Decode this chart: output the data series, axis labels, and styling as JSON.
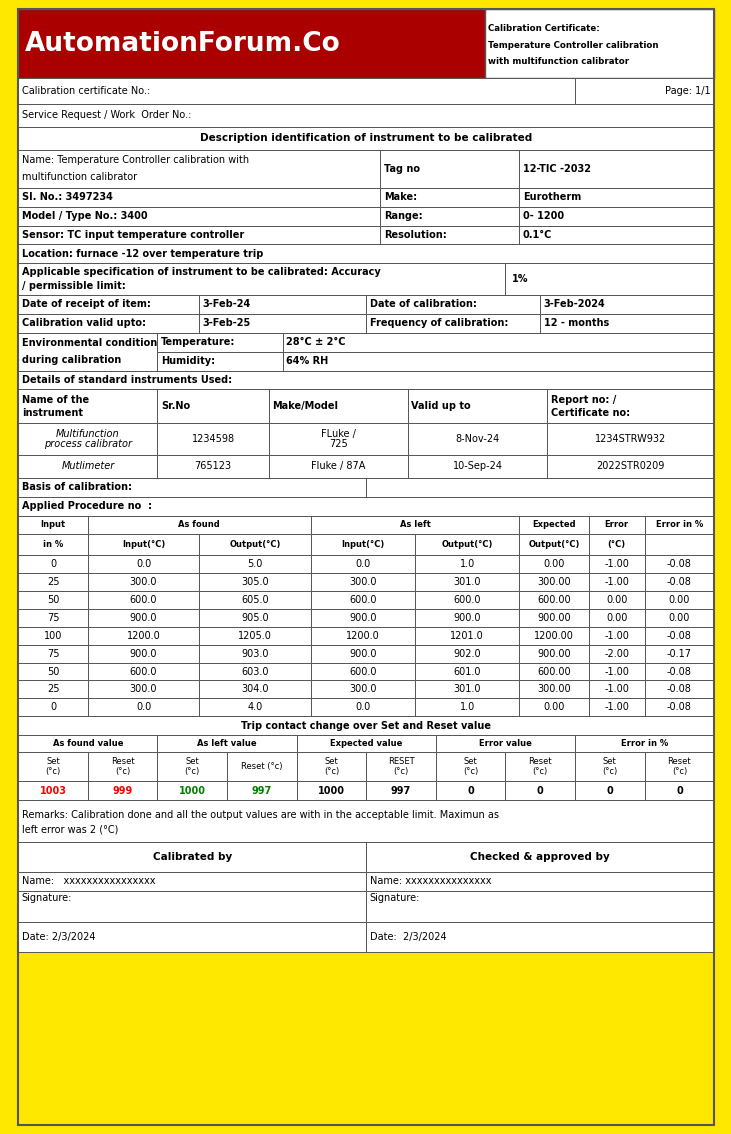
{
  "title_logo": "AutomationForum.Co",
  "title_cert": "Calibration Certificate:\nTemperature Controller calibration\nwith multifunction calibrator",
  "cert_no_label": "Calibration certificate No.:",
  "page_label": "Page: 1/1",
  "service_req_label": "Service Request / Work  Order No.:",
  "desc_title": "Description identification of instrument to be calibrated",
  "tag_label": "Tag no",
  "tag_value": "12-TIC -2032",
  "sl_label": "Sl. No.: 3497234",
  "make_label": "Make:",
  "make_value": "Eurotherm",
  "model_label": "Model / Type No.: 3400",
  "range_label": "Range:",
  "range_value": "0- 1200",
  "sensor_label": "Sensor: TC input temperature controller",
  "resolution_label": "Resolution:",
  "resolution_value": "0.1°C",
  "location_label": "Location: furnace -12 over temperature trip",
  "spec_value": "1%",
  "date_receipt_label": "Date of receipt of item:",
  "date_receipt_value": "3-Feb-24",
  "date_calib_label": "Date of calibration:",
  "date_calib_value": "3-Feb-2024",
  "calib_valid_label": "Calibration valid upto:",
  "calib_valid_value": "3-Feb-25",
  "freq_calib_label": "Frequency of calibration:",
  "freq_calib_value": "12 - months",
  "temp_label": "Temperature:",
  "temp_value": "28°C ± 2°C",
  "humidity_label": "Humidity:",
  "humidity_value": "64% RH",
  "details_std_label": "Details of standard instruments Used:",
  "basis_label": "Basis of calibration:",
  "applied_proc_label": "Applied Procedure no  :",
  "meas_data": [
    [
      0,
      0.0,
      5.0,
      0.0,
      1.0,
      0.0,
      -1.0,
      -0.08
    ],
    [
      25,
      300.0,
      305.0,
      300.0,
      301.0,
      300.0,
      -1.0,
      -0.08
    ],
    [
      50,
      600.0,
      605.0,
      600.0,
      600.0,
      600.0,
      0.0,
      0.0
    ],
    [
      75,
      900.0,
      905.0,
      900.0,
      900.0,
      900.0,
      0.0,
      0.0
    ],
    [
      100,
      1200.0,
      1205.0,
      1200.0,
      1201.0,
      1200.0,
      -1.0,
      -0.08
    ],
    [
      75,
      900.0,
      903.0,
      900.0,
      902.0,
      900.0,
      -2.0,
      -0.17
    ],
    [
      50,
      600.0,
      603.0,
      600.0,
      601.0,
      600.0,
      -1.0,
      -0.08
    ],
    [
      25,
      300.0,
      304.0,
      300.0,
      301.0,
      300.0,
      -1.0,
      -0.08
    ],
    [
      0,
      0.0,
      4.0,
      0.0,
      1.0,
      0.0,
      -1.0,
      -0.08
    ]
  ],
  "trip_title": "Trip contact change over Set and Reset value",
  "trip_data": [
    "1003",
    "999",
    "1000",
    "997",
    "1000",
    "997",
    "0",
    "0",
    "0",
    "0"
  ],
  "trip_data_colors": [
    "red",
    "red",
    "green",
    "green",
    "black",
    "black",
    "black",
    "black",
    "black",
    "black"
  ],
  "remarks_line1": "Remarks: Calibration done and all the output values are with in the acceptable limit. Maximun as",
  "remarks_line2": "left error was 2 (°C)",
  "calib_by": "Calibrated by",
  "checked_by": "Checked & approved by",
  "name_calib": "Name:   xxxxxxxxxxxxxxxx",
  "name_checked": "Name: xxxxxxxxxxxxxxx",
  "sig_calib": "Signature:",
  "sig_checked": "Signature:",
  "date_calib_sign": "Date: 2/3/2024",
  "date_checked_sign": "Date:  2/3/2024",
  "border_color": "#FFE800",
  "header_bg": "#AA0000",
  "gc": "#555555"
}
